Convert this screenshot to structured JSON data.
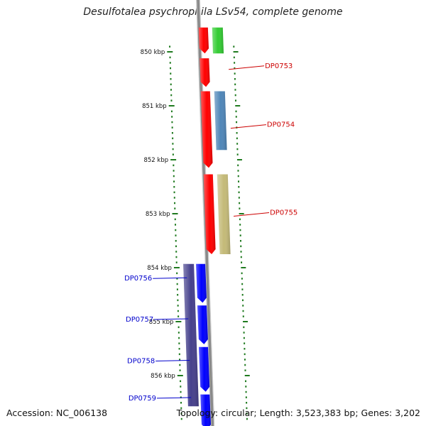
{
  "title": "Desulfotalea psychrophila LSv54, complete genome",
  "footer": {
    "accession": "Accession: NC_006138",
    "summary": "Topology: circular; Length: 3,523,383 bp; Genes: 3,202"
  },
  "colors": {
    "backbone": "#8a8a8a",
    "tick": "#1f7a1f",
    "label_red": "#cc0000",
    "label_blue": "#0000cc",
    "feature_red": "#ff0000",
    "feature_green": "#33cc33",
    "feature_steel": "#4f86b8",
    "feature_khaki": "#c4ba78",
    "feature_indigo": "#46408c",
    "feature_blue": "#0000ff"
  },
  "ticks": [
    {
      "kbp": 850,
      "label": "850 kbp"
    },
    {
      "kbp": 851,
      "label": "851 kbp"
    },
    {
      "kbp": 852,
      "label": "852 kbp"
    },
    {
      "kbp": 853,
      "label": "853 kbp"
    },
    {
      "kbp": 854,
      "label": "854 kbp"
    },
    {
      "kbp": 855,
      "label": "855 kbp"
    },
    {
      "kbp": 856,
      "label": "856 kbp"
    }
  ],
  "features": [
    {
      "track": "right",
      "start": 849.55,
      "end": 850.03,
      "color": "feature_green"
    },
    {
      "track": "right",
      "start": 850.73,
      "end": 851.82,
      "color": "feature_steel"
    },
    {
      "track": "right",
      "start": 852.27,
      "end": 853.75,
      "color": "feature_khaki"
    },
    {
      "track": "center-right",
      "start": 849.55,
      "end": 850.03,
      "color": "feature_red",
      "arrow": true
    },
    {
      "track": "center-right",
      "start": 850.12,
      "end": 850.65,
      "color": "feature_red",
      "arrow": true
    },
    {
      "track": "center-right",
      "start": 850.73,
      "end": 852.15,
      "color": "feature_red",
      "arrow": true
    },
    {
      "track": "center-right",
      "start": 852.27,
      "end": 853.75,
      "color": "feature_red",
      "arrow": true
    },
    {
      "track": "center-left",
      "start": 853.93,
      "end": 854.65,
      "color": "feature_blue",
      "arrow": true
    },
    {
      "track": "center-left",
      "start": 854.7,
      "end": 855.42,
      "color": "feature_blue",
      "arrow": true
    },
    {
      "track": "center-left",
      "start": 855.47,
      "end": 856.3,
      "color": "feature_blue",
      "arrow": true
    },
    {
      "track": "center-left",
      "start": 856.35,
      "end": 857.0,
      "color": "feature_blue",
      "arrow": true
    },
    {
      "track": "left",
      "start": 853.93,
      "end": 856.57,
      "color": "feature_indigo"
    }
  ],
  "gene_labels": [
    {
      "name": "DP0753",
      "at": 850.26,
      "side": "right",
      "color": "label_red"
    },
    {
      "name": "DP0754",
      "at": 851.35,
      "side": "right",
      "color": "label_red"
    },
    {
      "name": "DP0755",
      "at": 852.98,
      "side": "right",
      "color": "label_red"
    },
    {
      "name": "DP0756",
      "at": 854.2,
      "side": "left",
      "color": "label_blue"
    },
    {
      "name": "DP0757",
      "at": 854.96,
      "side": "left",
      "color": "label_blue"
    },
    {
      "name": "DP0758",
      "at": 855.73,
      "side": "left",
      "color": "label_blue"
    },
    {
      "name": "DP0759",
      "at": 856.42,
      "side": "left",
      "color": "label_blue"
    }
  ]
}
